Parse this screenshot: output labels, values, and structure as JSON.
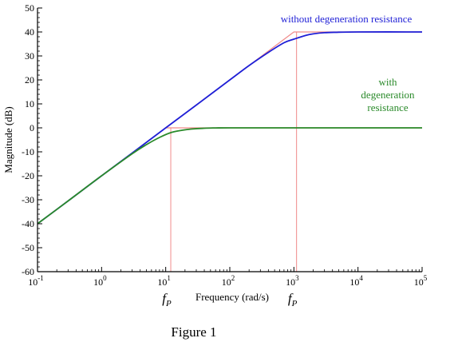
{
  "chart_data": {
    "type": "line",
    "xscale": "log",
    "xlim": [
      0.1,
      100000
    ],
    "ylim": [
      -60,
      50
    ],
    "xlabel": "Frequency (rad/s)",
    "ylabel": "Magnitude (dB)",
    "grid": false,
    "x_tick_labels": [
      {
        "base": "10",
        "exp": "-1"
      },
      {
        "base": "10",
        "exp": "0"
      },
      {
        "base": "10",
        "exp": "1"
      },
      {
        "base": "10",
        "exp": "2"
      },
      {
        "base": "10",
        "exp": "3"
      },
      {
        "base": "10",
        "exp": "4"
      },
      {
        "base": "10",
        "exp": "5"
      }
    ],
    "y_ticks": [
      50,
      40,
      30,
      20,
      10,
      0,
      -10,
      -20,
      -30,
      -40,
      -50,
      -60
    ],
    "series": [
      {
        "name": "without degeneration resistance",
        "color": "#1f1fd6",
        "x": [
          0.1,
          0.3,
          1,
          3,
          10,
          30,
          100,
          200,
          400,
          700,
          1000,
          1500,
          2000,
          3000,
          5000,
          10000,
          100000
        ],
        "y": [
          -40,
          -30.5,
          -20,
          -10.5,
          0,
          9.5,
          20,
          26,
          31.5,
          35.5,
          37,
          38.5,
          39.2,
          39.7,
          39.9,
          40,
          40
        ]
      },
      {
        "name": "with degeneration resistance",
        "color": "#2a8a2a",
        "x": [
          0.1,
          0.3,
          1,
          3,
          5,
          8,
          12,
          18,
          25,
          40,
          60,
          100,
          1000,
          100000
        ],
        "y": [
          -40,
          -30.5,
          -20,
          -10.8,
          -7,
          -4,
          -2,
          -1,
          -0.5,
          -0.15,
          -0.05,
          0,
          0,
          0
        ]
      }
    ],
    "asymptotes": {
      "color": "#f08a8a",
      "without": {
        "x": [
          0.1,
          1000,
          100000
        ],
        "y": [
          -40,
          40,
          40
        ]
      },
      "with": {
        "x": [
          0.1,
          10,
          100000
        ],
        "y": [
          -40,
          0,
          0
        ]
      }
    },
    "markers": [
      {
        "label": "f",
        "sub": "P",
        "x": 12
      },
      {
        "label": "f",
        "sub": "P",
        "x": 1100
      }
    ],
    "annotations": [
      {
        "lines": [
          "without degeneration resistance"
        ],
        "color": "#1f1fd6"
      },
      {
        "lines": [
          "with",
          "degeneration",
          "resistance"
        ],
        "color": "#2a8a2a"
      }
    ]
  },
  "caption": "Figure 1"
}
